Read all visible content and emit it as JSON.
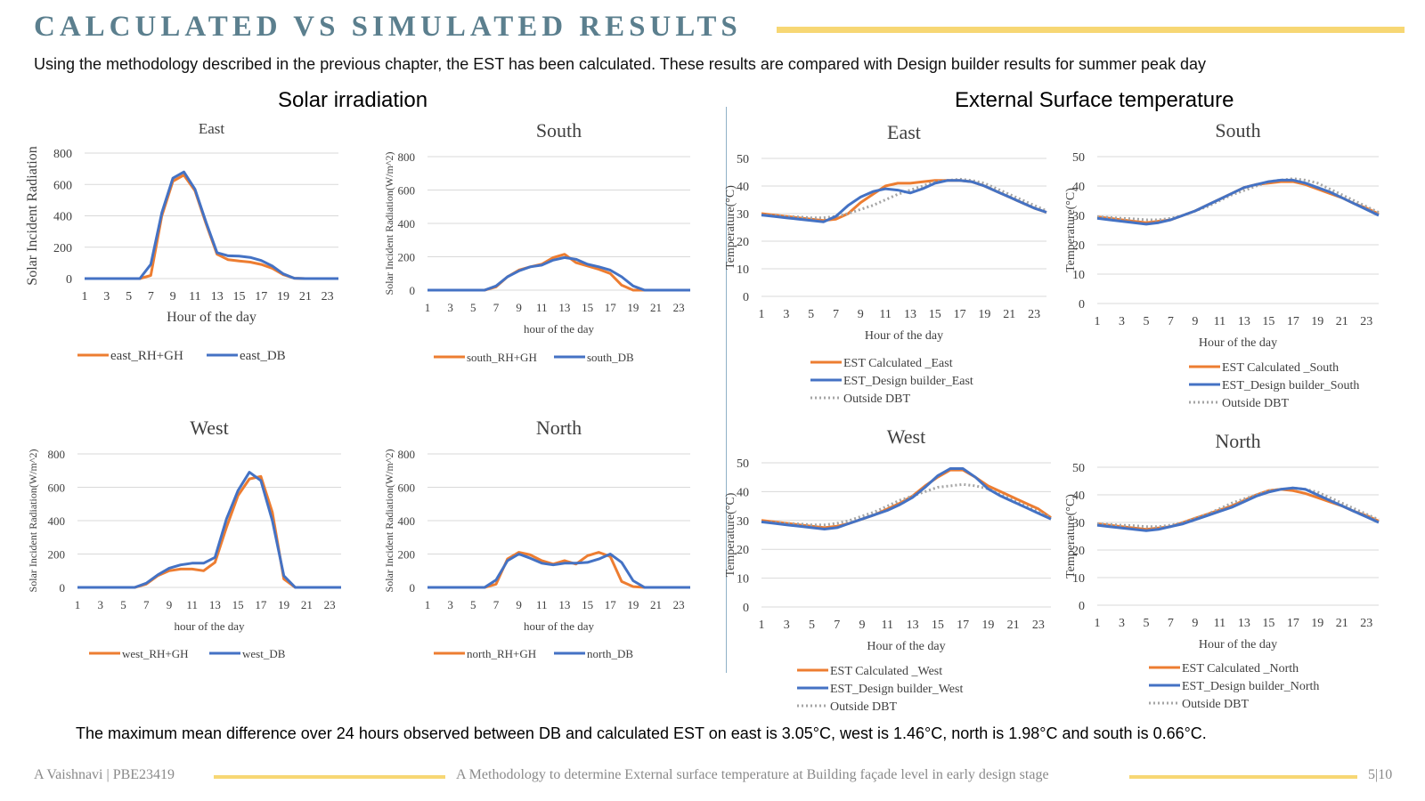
{
  "header": {
    "title": "CALCULATED VS SIMULATED RESULTS",
    "subtitle": "Using the methodology described in the previous chapter, the EST has been calculated. These results are compared with Design builder results for summer peak day"
  },
  "sections": {
    "left": "Solar irradiation",
    "right": "External Surface temperature"
  },
  "colors": {
    "calculated": "#ed7d31",
    "design_builder": "#4472c4",
    "dbt": "#a5a5a5",
    "accent": "#f7d774"
  },
  "conclusion": "The maximum mean difference over 24 hours observed between DB and calculated EST on east is 3.05°C, west is 1.46°C, north is 1.98°C and south is 0.66°C.",
  "footer": {
    "author": "A Vaishnavi | PBE23419",
    "thesis": "A Methodology to determine External surface temperature at Building façade level in early design stage",
    "page": "5|10"
  },
  "chart_data": [
    {
      "type": "line",
      "title": "East",
      "xlabel": "Hour of the day",
      "ylabel": "Solar Incident Radiation",
      "x": [
        1,
        2,
        3,
        4,
        5,
        6,
        7,
        8,
        9,
        10,
        11,
        12,
        13,
        14,
        15,
        16,
        17,
        18,
        19,
        20,
        21,
        22,
        23,
        24
      ],
      "x_ticks": [
        "1",
        "3",
        "5",
        "7",
        "9",
        "11",
        "13",
        "15",
        "17",
        "19",
        "21",
        "23"
      ],
      "ylim": [
        0,
        800
      ],
      "y_ticks": [
        0,
        200,
        400,
        600,
        800
      ],
      "grid": true,
      "legend": "bottom",
      "series": [
        {
          "name": "east_RH+GH",
          "style": "calculated",
          "values": [
            0,
            0,
            0,
            0,
            0,
            0,
            20,
            400,
            620,
            660,
            560,
            350,
            155,
            120,
            112,
            105,
            90,
            65,
            25,
            2,
            0,
            0,
            0,
            0
          ]
        },
        {
          "name": "east_DB",
          "style": "design_builder",
          "values": [
            0,
            0,
            0,
            0,
            0,
            0,
            90,
            420,
            640,
            680,
            570,
            360,
            165,
            145,
            143,
            135,
            115,
            80,
            30,
            2,
            0,
            0,
            0,
            0
          ]
        }
      ]
    },
    {
      "type": "line",
      "title": "South",
      "xlabel": "hour of the day",
      "ylabel": "Solar Incident Radiation(W/m^2)",
      "x": [
        1,
        2,
        3,
        4,
        5,
        6,
        7,
        8,
        9,
        10,
        11,
        12,
        13,
        14,
        15,
        16,
        17,
        18,
        19,
        20,
        21,
        22,
        23,
        24
      ],
      "x_ticks": [
        "1",
        "3",
        "5",
        "7",
        "9",
        "11",
        "13",
        "15",
        "17",
        "19",
        "21",
        "23"
      ],
      "ylim": [
        0,
        800
      ],
      "y_ticks": [
        0,
        200,
        400,
        600,
        800
      ],
      "grid": true,
      "legend": "bottom",
      "series": [
        {
          "name": "south_RH+GH",
          "style": "calculated",
          "values": [
            0,
            0,
            0,
            0,
            0,
            0,
            20,
            80,
            120,
            140,
            155,
            195,
            215,
            165,
            145,
            125,
            100,
            30,
            0,
            0,
            0,
            0,
            0,
            0
          ]
        },
        {
          "name": "south_DB",
          "style": "design_builder",
          "values": [
            0,
            0,
            0,
            0,
            0,
            0,
            25,
            80,
            115,
            140,
            150,
            180,
            195,
            185,
            155,
            140,
            120,
            80,
            25,
            0,
            0,
            0,
            0,
            0
          ]
        }
      ]
    },
    {
      "type": "line",
      "title": "West",
      "xlabel": "hour of the day",
      "ylabel": "Solar Incident Radiation(W/m^2)",
      "x": [
        1,
        2,
        3,
        4,
        5,
        6,
        7,
        8,
        9,
        10,
        11,
        12,
        13,
        14,
        15,
        16,
        17,
        18,
        19,
        20,
        21,
        22,
        23,
        24
      ],
      "x_ticks": [
        "1",
        "3",
        "5",
        "7",
        "9",
        "11",
        "13",
        "15",
        "17",
        "19",
        "21",
        "23"
      ],
      "ylim": [
        0,
        800
      ],
      "y_ticks": [
        0,
        200,
        400,
        600,
        800
      ],
      "grid": true,
      "legend": "bottom",
      "series": [
        {
          "name": "west_RH+GH",
          "style": "calculated",
          "values": [
            0,
            0,
            0,
            0,
            0,
            0,
            20,
            70,
            100,
            110,
            110,
            100,
            150,
            360,
            550,
            650,
            665,
            450,
            50,
            0,
            0,
            0,
            0,
            0
          ]
        },
        {
          "name": "west_DB",
          "style": "design_builder",
          "values": [
            0,
            0,
            0,
            0,
            0,
            0,
            25,
            75,
            115,
            135,
            145,
            145,
            180,
            410,
            580,
            690,
            640,
            400,
            70,
            0,
            0,
            0,
            0,
            0
          ]
        }
      ]
    },
    {
      "type": "line",
      "title": "North",
      "xlabel": "hour of the day",
      "ylabel": "Solar Incident Radiation(W/m^2)",
      "x": [
        1,
        2,
        3,
        4,
        5,
        6,
        7,
        8,
        9,
        10,
        11,
        12,
        13,
        14,
        15,
        16,
        17,
        18,
        19,
        20,
        21,
        22,
        23,
        24
      ],
      "x_ticks": [
        "1",
        "3",
        "5",
        "7",
        "9",
        "11",
        "13",
        "15",
        "17",
        "19",
        "21",
        "23"
      ],
      "ylim": [
        0,
        800
      ],
      "y_ticks": [
        0,
        200,
        400,
        600,
        800
      ],
      "grid": true,
      "legend": "bottom",
      "series": [
        {
          "name": "north_RH+GH",
          "style": "calculated",
          "values": [
            0,
            0,
            0,
            0,
            0,
            0,
            20,
            170,
            210,
            195,
            160,
            140,
            160,
            140,
            190,
            210,
            185,
            35,
            5,
            0,
            0,
            0,
            0,
            0
          ]
        },
        {
          "name": "north_DB",
          "style": "design_builder",
          "values": [
            0,
            0,
            0,
            0,
            0,
            0,
            45,
            160,
            200,
            175,
            145,
            135,
            145,
            145,
            150,
            170,
            200,
            150,
            40,
            0,
            0,
            0,
            0,
            0
          ]
        }
      ]
    },
    {
      "type": "line",
      "title": "East",
      "xlabel": "Hour of the day",
      "ylabel": "Temperature(°C)",
      "x": [
        1,
        2,
        3,
        4,
        5,
        6,
        7,
        8,
        9,
        10,
        11,
        12,
        13,
        14,
        15,
        16,
        17,
        18,
        19,
        20,
        21,
        22,
        23,
        24
      ],
      "x_ticks": [
        "1",
        "3",
        "5",
        "7",
        "9",
        "11",
        "13",
        "15",
        "17",
        "19",
        "21",
        "23"
      ],
      "ylim": [
        0,
        50
      ],
      "y_ticks": [
        0,
        10,
        20,
        30,
        40,
        50
      ],
      "grid": true,
      "legend": "bottom",
      "series": [
        {
          "name": "EST Calculated _East",
          "style": "calculated",
          "values": [
            30,
            29.5,
            29,
            28.5,
            28,
            27.5,
            28,
            30,
            34,
            37,
            40,
            41,
            41,
            41.5,
            42,
            42,
            42,
            41.5,
            40,
            38,
            36,
            34,
            32,
            30.5
          ]
        },
        {
          "name": "EST_Design builder_East",
          "style": "design_builder",
          "values": [
            29.5,
            29,
            28.5,
            28,
            27.5,
            27,
            29,
            33,
            36,
            38,
            39,
            38.5,
            37.5,
            39,
            41,
            42,
            42,
            41.5,
            40,
            38,
            36,
            34,
            32,
            30.5
          ]
        },
        {
          "name": "Outside DBT",
          "style": "dbt",
          "values": [
            29.5,
            29.3,
            29,
            28.8,
            28.5,
            28.5,
            29,
            30,
            31.5,
            33,
            35,
            37,
            38.5,
            40,
            41.5,
            42,
            42.5,
            42,
            41,
            39,
            37,
            35,
            33,
            31
          ]
        }
      ]
    },
    {
      "type": "line",
      "title": "South",
      "xlabel": "Hour of the day",
      "ylabel": "Temperature(°C)",
      "x": [
        1,
        2,
        3,
        4,
        5,
        6,
        7,
        8,
        9,
        10,
        11,
        12,
        13,
        14,
        15,
        16,
        17,
        18,
        19,
        20,
        21,
        22,
        23,
        24
      ],
      "x_ticks": [
        "1",
        "3",
        "5",
        "7",
        "9",
        "11",
        "13",
        "15",
        "17",
        "19",
        "21",
        "23"
      ],
      "ylim": [
        0,
        50
      ],
      "y_ticks": [
        0,
        10,
        20,
        30,
        40,
        50
      ],
      "grid": true,
      "legend": "bottom",
      "series": [
        {
          "name": "EST Calculated _South",
          "style": "calculated",
          "values": [
            29.5,
            29,
            28.5,
            28,
            27.5,
            28,
            28.5,
            30,
            31.5,
            33.5,
            35.5,
            37.5,
            39.5,
            40.5,
            41,
            41.5,
            41.5,
            40.5,
            39,
            37.5,
            36,
            34,
            32.5,
            30.5
          ]
        },
        {
          "name": "EST_Design builder_South",
          "style": "design_builder",
          "values": [
            29,
            28.5,
            28,
            27.5,
            27,
            27.5,
            28.5,
            30,
            31.5,
            33.5,
            35.5,
            37.5,
            39.5,
            40.5,
            41.5,
            42,
            42,
            41,
            39.5,
            38,
            36,
            34,
            32,
            30
          ]
        },
        {
          "name": "Outside DBT",
          "style": "dbt",
          "values": [
            29.5,
            29.3,
            29,
            28.8,
            28.5,
            28.5,
            29,
            30,
            31.5,
            33,
            35,
            37,
            38.5,
            40,
            41.5,
            42,
            42.5,
            42,
            41,
            39,
            37,
            35,
            33,
            31
          ]
        }
      ]
    },
    {
      "type": "line",
      "title": "West",
      "xlabel": "Hour of the day",
      "ylabel": "Temperature(°C)",
      "x": [
        1,
        2,
        3,
        4,
        5,
        6,
        7,
        8,
        9,
        10,
        11,
        12,
        13,
        14,
        15,
        16,
        17,
        18,
        19,
        20,
        21,
        22,
        23,
        24
      ],
      "x_ticks": [
        "1",
        "3",
        "5",
        "7",
        "9",
        "11",
        "13",
        "15",
        "17",
        "19",
        "21",
        "23"
      ],
      "ylim": [
        0,
        50
      ],
      "y_ticks": [
        0,
        10,
        20,
        30,
        40,
        50
      ],
      "grid": true,
      "legend": "bottom",
      "series": [
        {
          "name": "EST Calculated _West",
          "style": "calculated",
          "values": [
            30,
            29.5,
            29,
            28.5,
            28,
            27.5,
            28,
            29,
            30.5,
            32,
            34,
            36,
            38.5,
            42,
            45,
            47.5,
            47.5,
            45,
            42,
            40,
            38,
            36,
            34,
            31
          ]
        },
        {
          "name": "EST_Design builder_West",
          "style": "design_builder",
          "values": [
            29.5,
            29,
            28.5,
            28,
            27.5,
            27,
            27.5,
            29,
            30.5,
            32,
            33.5,
            35.5,
            38,
            41.5,
            45.5,
            48,
            48,
            45,
            41,
            38.5,
            36.5,
            34.5,
            32.5,
            30.5
          ]
        },
        {
          "name": "Outside DBT",
          "style": "dbt",
          "values": [
            29.5,
            29.3,
            29,
            28.8,
            28.5,
            28.5,
            29,
            30,
            31.5,
            33,
            35,
            37,
            38.5,
            40,
            41.5,
            42,
            42.5,
            42,
            41,
            39,
            37,
            35,
            33,
            31
          ]
        }
      ]
    },
    {
      "type": "line",
      "title": "North",
      "xlabel": "Hour of the day",
      "ylabel": "Temperature(°C)",
      "x": [
        1,
        2,
        3,
        4,
        5,
        6,
        7,
        8,
        9,
        10,
        11,
        12,
        13,
        14,
        15,
        16,
        17,
        18,
        19,
        20,
        21,
        22,
        23,
        24
      ],
      "x_ticks": [
        "1",
        "3",
        "5",
        "7",
        "9",
        "11",
        "13",
        "15",
        "17",
        "19",
        "21",
        "23"
      ],
      "ylim": [
        0,
        50
      ],
      "y_ticks": [
        0,
        10,
        20,
        30,
        40,
        50
      ],
      "grid": true,
      "legend": "bottom",
      "series": [
        {
          "name": "EST Calculated _North",
          "style": "calculated",
          "values": [
            29.5,
            29,
            28.5,
            28,
            27.5,
            28,
            28.5,
            30,
            31.5,
            33,
            34.5,
            36,
            38,
            40,
            41.5,
            42,
            41.5,
            40.5,
            39,
            37.5,
            36,
            34,
            32.5,
            30.5
          ]
        },
        {
          "name": "EST_Design builder_North",
          "style": "design_builder",
          "values": [
            29,
            28.5,
            28,
            27.5,
            27,
            27.5,
            28.5,
            29.5,
            31,
            32.5,
            34,
            35.5,
            37.5,
            39.5,
            41,
            42,
            42.5,
            42,
            40,
            38,
            36,
            34,
            32,
            30
          ]
        },
        {
          "name": "Outside DBT",
          "style": "dbt",
          "values": [
            29.5,
            29.3,
            29,
            28.8,
            28.5,
            28.5,
            29,
            30,
            31.5,
            33,
            35,
            37,
            38.5,
            40,
            41.5,
            42,
            42.5,
            42,
            41,
            39,
            37,
            35,
            33,
            31
          ]
        }
      ]
    }
  ]
}
